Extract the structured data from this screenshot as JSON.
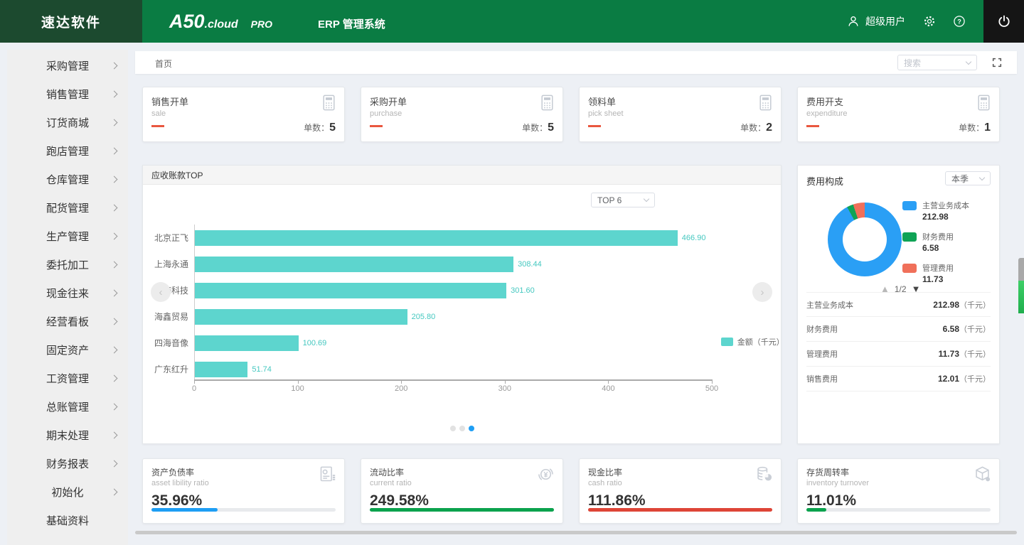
{
  "header": {
    "logo": "速达软件",
    "product": "A50",
    "product_suffix": ".cloud",
    "product_badge": "PRO",
    "system_name": "ERP 管理系统",
    "user": "超级用户"
  },
  "sidebar": {
    "items": [
      {
        "label": "采购管理",
        "arrow": true
      },
      {
        "label": "销售管理",
        "arrow": true
      },
      {
        "label": "订货商城",
        "arrow": true
      },
      {
        "label": "跑店管理",
        "arrow": true
      },
      {
        "label": "仓库管理",
        "arrow": true
      },
      {
        "label": "配货管理",
        "arrow": true
      },
      {
        "label": "生产管理",
        "arrow": true
      },
      {
        "label": "委托加工",
        "arrow": true
      },
      {
        "label": "现金往来",
        "arrow": true
      },
      {
        "label": "经营看板",
        "arrow": true
      },
      {
        "label": "固定资产",
        "arrow": true
      },
      {
        "label": "工资管理",
        "arrow": true
      },
      {
        "label": "总账管理",
        "arrow": true
      },
      {
        "label": "期末处理",
        "arrow": true
      },
      {
        "label": "财务报表",
        "arrow": true
      },
      {
        "label": "初始化",
        "arrow": true
      },
      {
        "label": "基础资料",
        "arrow": false
      }
    ]
  },
  "breadcrumb": {
    "home": "首页",
    "search_placeholder": "搜索"
  },
  "stat_cards": [
    {
      "title": "销售开单",
      "subtitle": "sale",
      "count_label": "单数：",
      "count": "5"
    },
    {
      "title": "采购开单",
      "subtitle": "purchase",
      "count_label": "单数：",
      "count": "5"
    },
    {
      "title": "领料单",
      "subtitle": "pick sheet",
      "count_label": "单数：",
      "count": "2"
    },
    {
      "title": "费用开支",
      "subtitle": "expenditure",
      "count_label": "单数：",
      "count": "1"
    }
  ],
  "chart_data": [
    {
      "type": "bar",
      "title": "应收账款TOP",
      "filter": "TOP 6",
      "orientation": "horizontal",
      "categories": [
        "北京正飞",
        "上海永通",
        "洪海科技",
        "海鑫贸易",
        "四海音像",
        "广东红升"
      ],
      "values": [
        466.9,
        308.44,
        301.6,
        205.8,
        100.69,
        51.74
      ],
      "xlim": [
        0,
        500
      ],
      "x_ticks": [
        0,
        100,
        200,
        300,
        400,
        500
      ],
      "legend": "金额（千元）",
      "legend_position": "right",
      "grid": false,
      "bar_color": "#5dd5ce",
      "value_color": "#45c8c0"
    },
    {
      "type": "pie",
      "title": "费用构成",
      "filter": "本季",
      "donut": true,
      "series": [
        {
          "name": "主营业务成本",
          "value": 212.98,
          "color": "#2a9ff5"
        },
        {
          "name": "财务费用",
          "value": 6.58,
          "color": "#0fa355"
        },
        {
          "name": "管理费用",
          "value": 11.73,
          "color": "#f0705a"
        }
      ],
      "pagination": {
        "up": "▲",
        "text": "1/2",
        "down": "▼"
      },
      "table": [
        {
          "name": "主营业务成本",
          "value": "212.98",
          "unit": "（千元）"
        },
        {
          "name": "财务费用",
          "value": "6.58",
          "unit": "（千元）"
        },
        {
          "name": "管理费用",
          "value": "11.73",
          "unit": "（千元）"
        },
        {
          "name": "销售费用",
          "value": "12.01",
          "unit": "（千元）"
        }
      ]
    }
  ],
  "ratio_cards": [
    {
      "title": "资产负债率",
      "subtitle": "asset libility ratio",
      "value": "35.96%",
      "bar_pct": 36,
      "bar_color": "#1e9ef4",
      "icon": "report-icon"
    },
    {
      "title": "流动比率",
      "subtitle": "current ratio",
      "value": "249.58%",
      "bar_pct": 100,
      "bar_color": "#0ba24d",
      "icon": "cycle-yuan-icon"
    },
    {
      "title": "现金比率",
      "subtitle": "cash ratio",
      "value": "111.86%",
      "bar_pct": 100,
      "bar_color": "#de4537",
      "icon": "coins-icon"
    },
    {
      "title": "存货周转率",
      "subtitle": "inventory turnover",
      "value": "11.01%",
      "bar_pct": 11,
      "bar_color": "#0ba24d",
      "icon": "box-icon"
    }
  ],
  "carousel": {
    "dots": 3,
    "active_index": 2
  },
  "colors": {
    "header_green": "#0a7c43",
    "logo_dark_green": "#1c4a2f",
    "teal_bar": "#5dd5ce",
    "accent_blue": "#1e9ef4",
    "accent_green": "#0ba24d",
    "accent_red": "#de4537",
    "card_dash_red": "#e9573f"
  }
}
